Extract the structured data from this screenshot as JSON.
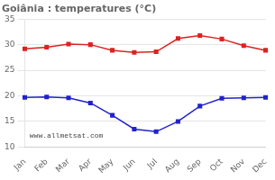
{
  "chart_data": {
    "type": "line",
    "title": "Goiânia : temperatures (°C)",
    "categories": [
      "Jan",
      "Feb",
      "Mar",
      "Apr",
      "May",
      "Jun",
      "Jul",
      "Aug",
      "Sep",
      "Oct",
      "Nov",
      "Dec"
    ],
    "series": [
      {
        "color": "#dd2222",
        "marker": "square",
        "values": [
          29.2,
          29.5,
          30.1,
          30.0,
          28.9,
          28.5,
          28.6,
          31.2,
          31.8,
          31.1,
          29.8,
          28.9
        ]
      },
      {
        "color": "#2222cc",
        "marker": "square",
        "values": [
          19.7,
          19.8,
          19.6,
          18.6,
          16.2,
          13.5,
          13.0,
          15.0,
          18.0,
          19.5,
          19.6,
          19.7
        ]
      }
    ],
    "ylim": [
      10,
      35
    ],
    "yticks": [
      10,
      15,
      20,
      25,
      30,
      35
    ],
    "grid": true,
    "annotations": [
      "www.allmetsat.com"
    ]
  }
}
